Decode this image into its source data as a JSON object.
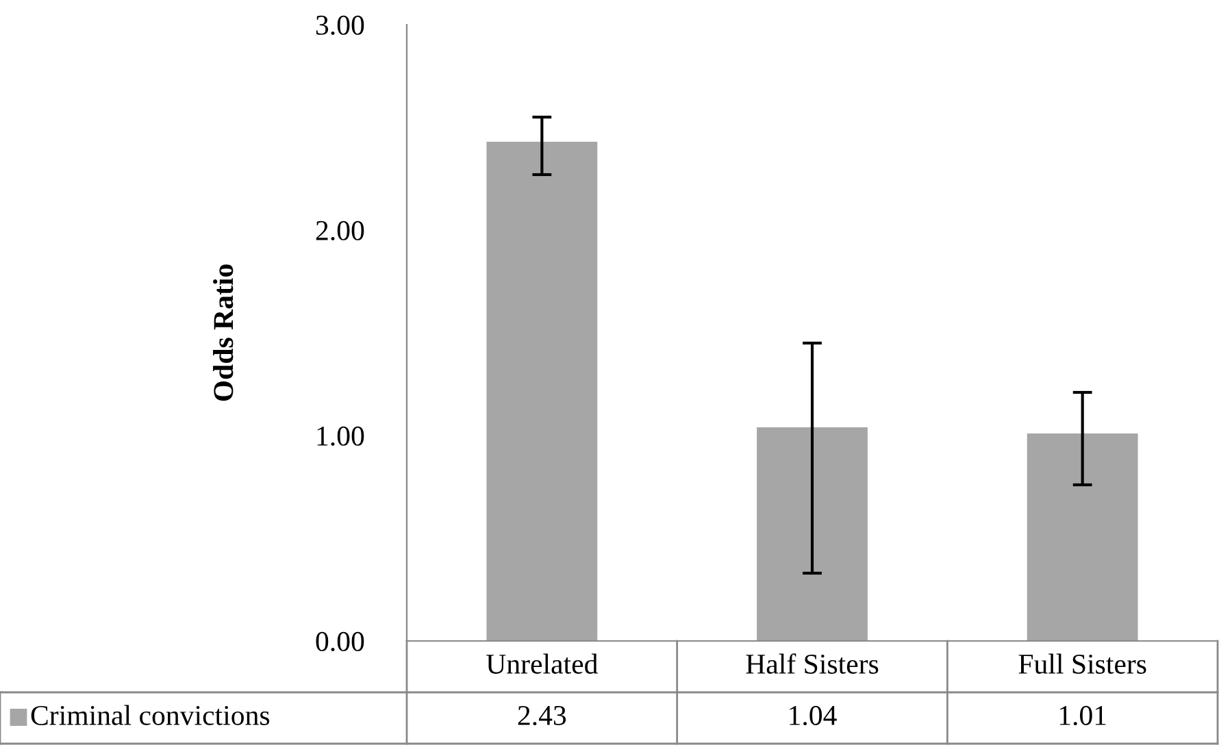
{
  "chart_data": {
    "type": "bar",
    "ylabel": "Odds Ratio",
    "categories": [
      "Unrelated",
      "Half Sisters",
      "Full Sisters"
    ],
    "series": [
      {
        "name": "Criminal convictions",
        "color": "#a6a6a6",
        "values": [
          2.43,
          1.04,
          1.01
        ],
        "errors": [
          [
            2.27,
            2.55
          ],
          [
            0.33,
            1.45
          ],
          [
            0.76,
            1.21
          ]
        ]
      }
    ],
    "ylim": [
      0,
      3
    ],
    "yticks": [
      {
        "value": 0,
        "label": "0.00"
      },
      {
        "value": 1,
        "label": "1.00"
      },
      {
        "value": 2,
        "label": "2.00"
      },
      {
        "value": 3,
        "label": "3.00"
      }
    ],
    "grid": false,
    "data_labels": true
  }
}
